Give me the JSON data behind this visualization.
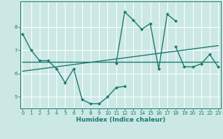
{
  "xlabel": "Humidex (Indice chaleur)",
  "background_color": "#cce8e5",
  "grid_color": "#ffffff",
  "line_color": "#1a7a6e",
  "x": [
    0,
    1,
    2,
    3,
    4,
    5,
    6,
    7,
    8,
    9,
    10,
    11,
    12,
    13,
    14,
    15,
    16,
    17,
    18,
    19,
    20,
    21,
    22,
    23
  ],
  "line1": [
    7.7,
    7.0,
    6.55,
    6.55,
    6.2,
    5.6,
    6.2,
    4.88,
    4.7,
    4.7,
    5.0,
    5.4,
    5.45,
    null,
    null,
    null,
    null,
    null,
    null,
    null,
    null,
    null,
    null,
    null
  ],
  "line2": [
    null,
    null,
    null,
    null,
    null,
    null,
    null,
    null,
    null,
    null,
    null,
    6.45,
    8.65,
    8.3,
    7.9,
    8.15,
    6.2,
    8.55,
    8.25,
    null,
    null,
    null,
    null,
    null
  ],
  "line3_x": [
    0,
    23
  ],
  "line3_y": [
    6.5,
    6.5
  ],
  "line4_x": [
    0,
    23
  ],
  "line4_y": [
    6.1,
    7.2
  ],
  "line5": [
    null,
    null,
    null,
    null,
    null,
    null,
    null,
    null,
    null,
    null,
    null,
    null,
    null,
    null,
    null,
    null,
    null,
    null,
    7.15,
    6.3,
    6.28,
    6.42,
    6.82,
    6.28
  ],
  "xlim": [
    -0.3,
    23.3
  ],
  "ylim": [
    4.5,
    9.1
  ],
  "yticks": [
    5,
    6,
    7,
    8
  ],
  "xticks": [
    0,
    1,
    2,
    3,
    4,
    5,
    6,
    7,
    8,
    9,
    10,
    11,
    12,
    13,
    14,
    15,
    16,
    17,
    18,
    19,
    20,
    21,
    22,
    23
  ]
}
